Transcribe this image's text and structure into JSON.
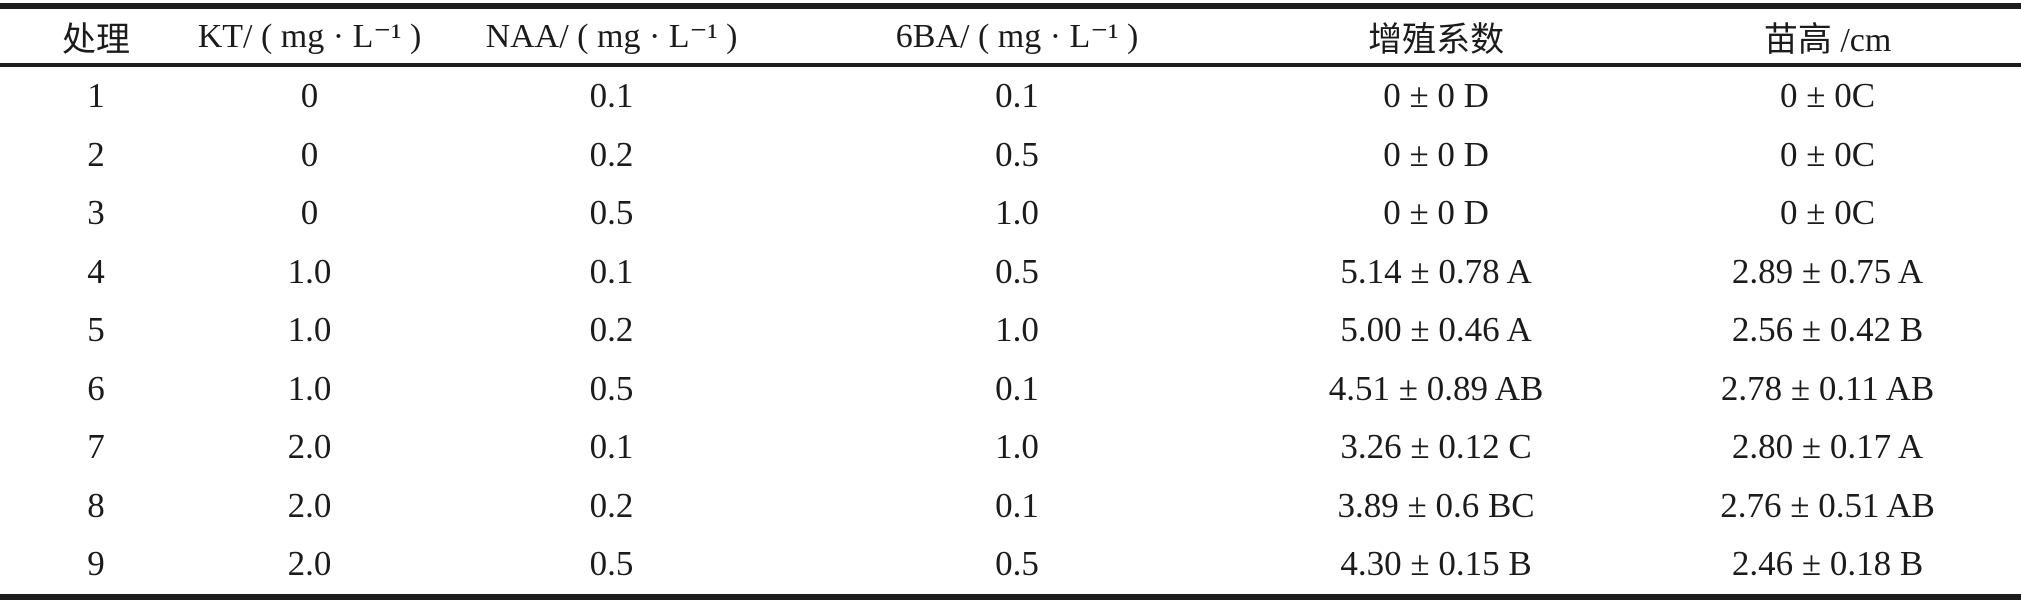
{
  "table": {
    "columns": [
      {
        "key": "treatment",
        "label": "处理"
      },
      {
        "key": "kt",
        "label": "KT/ ( mg · L⁻¹ )"
      },
      {
        "key": "naa",
        "label": "NAA/ ( mg · L⁻¹ )"
      },
      {
        "key": "6ba",
        "label": "6BA/ ( mg · L⁻¹ )"
      },
      {
        "key": "prolif",
        "label": "增殖系数"
      },
      {
        "key": "height",
        "label": "苗高 /cm"
      }
    ],
    "rows": [
      [
        "1",
        "0",
        "0.1",
        "0.1",
        "0 ± 0 D",
        "0 ± 0C"
      ],
      [
        "2",
        "0",
        "0.2",
        "0.5",
        "0 ± 0 D",
        "0 ± 0C"
      ],
      [
        "3",
        "0",
        "0.5",
        "1.0",
        "0 ± 0 D",
        "0 ± 0C"
      ],
      [
        "4",
        "1.0",
        "0.1",
        "0.5",
        "5.14 ± 0.78 A",
        "2.89 ± 0.75 A"
      ],
      [
        "5",
        "1.0",
        "0.2",
        "1.0",
        "5.00 ± 0.46 A",
        "2.56 ± 0.42 B"
      ],
      [
        "6",
        "1.0",
        "0.5",
        "0.1",
        "4.51 ± 0.89 AB",
        "2.78 ± 0.11 AB"
      ],
      [
        "7",
        "2.0",
        "0.1",
        "1.0",
        "3.26 ± 0.12 C",
        "2.80 ± 0.17 A"
      ],
      [
        "8",
        "2.0",
        "0.2",
        "0.1",
        "3.89 ± 0.6 BC",
        "2.76 ± 0.51 AB"
      ],
      [
        "9",
        "2.0",
        "0.5",
        "0.5",
        "4.30 ± 0.15 B",
        "2.46 ± 0.18 B"
      ]
    ],
    "colors": {
      "ink": "#1b1b1b",
      "rule": "#1c1c1c",
      "background": "#ffffff"
    }
  }
}
